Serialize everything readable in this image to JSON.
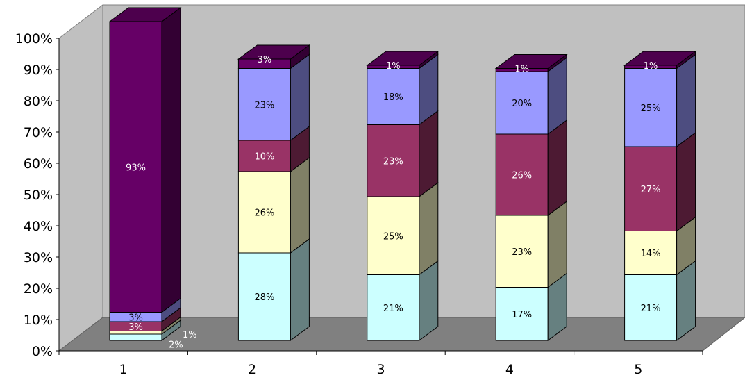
{
  "chart_data": {
    "type": "bar",
    "stacked": true,
    "three_d": true,
    "title": "",
    "xlabel": "",
    "ylabel": "",
    "ylim": [
      0,
      100
    ],
    "y_ticks": [
      "0%",
      "10%",
      "20%",
      "30%",
      "40%",
      "50%",
      "60%",
      "70%",
      "80%",
      "90%",
      "100%"
    ],
    "categories": [
      "1",
      "2",
      "3",
      "4",
      "5"
    ],
    "grid": false,
    "series": [
      {
        "color": "#ccffff",
        "values": [
          2,
          28,
          21,
          17,
          21
        ],
        "labels": [
          "2%",
          "28%",
          "21%",
          "17%",
          "21%"
        ]
      },
      {
        "color": "#ffffcc",
        "values": [
          1,
          26,
          25,
          23,
          14
        ],
        "labels": [
          "1%",
          "26%",
          "25%",
          "23%",
          "14%"
        ]
      },
      {
        "color": "#993366",
        "values": [
          3,
          10,
          23,
          26,
          27
        ],
        "labels": [
          "3%",
          "10%",
          "23%",
          "26%",
          "27%"
        ]
      },
      {
        "color": "#9999ff",
        "values": [
          3,
          23,
          18,
          20,
          25
        ],
        "labels": [
          "3%",
          "23%",
          "18%",
          "20%",
          "25%"
        ]
      },
      {
        "color": "#660066",
        "values": [
          93,
          3,
          1,
          1,
          1
        ],
        "labels": [
          "93%",
          "3%",
          "1%",
          "1%",
          "1%"
        ]
      }
    ]
  }
}
